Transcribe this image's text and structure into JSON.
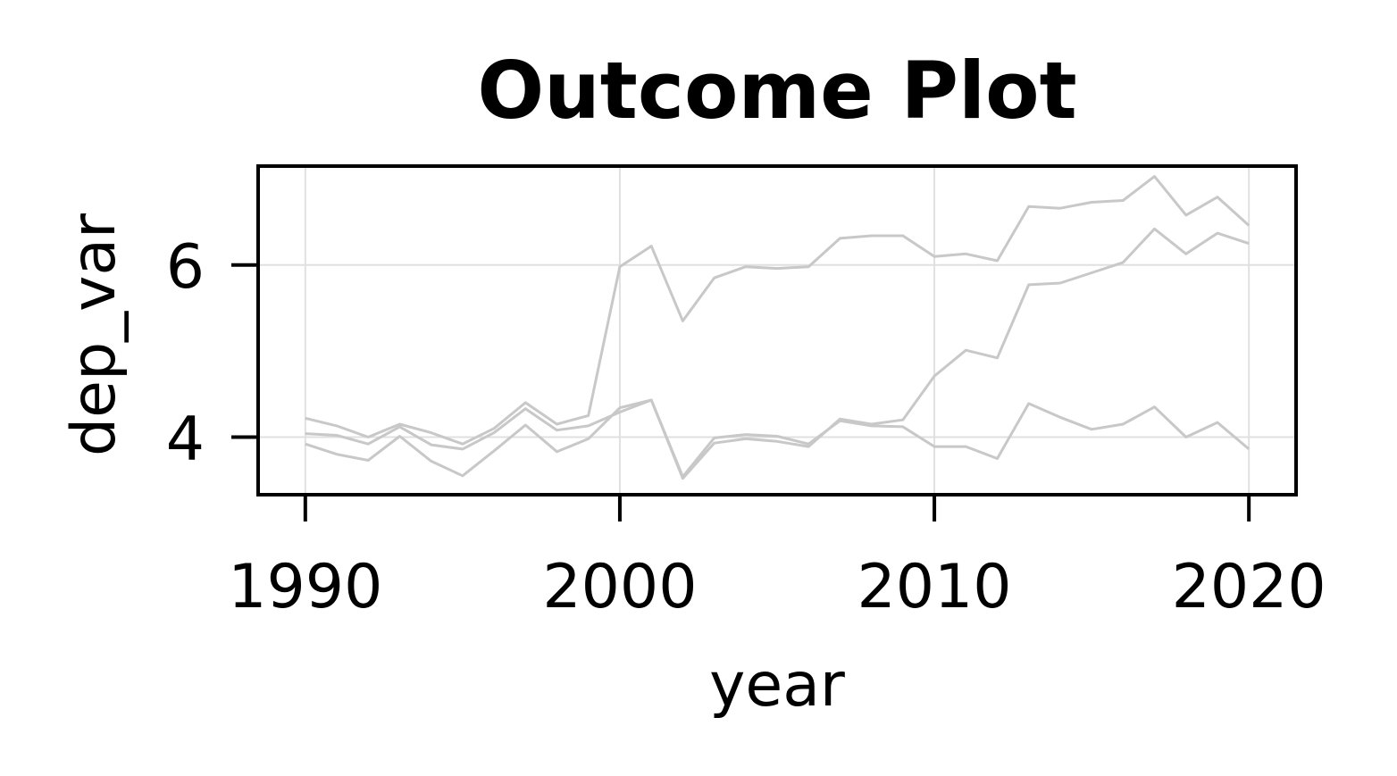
{
  "chart_data": {
    "type": "line",
    "title": "Outcome Plot",
    "xlabel": "year",
    "ylabel": "dep_var",
    "xlim": [
      1988.5,
      2021.5
    ],
    "ylim": [
      3.33,
      7.15
    ],
    "x_ticks": [
      1990,
      2000,
      2010,
      2020
    ],
    "y_ticks": [
      4,
      6
    ],
    "grid": true,
    "line_color": "#c8c8c8",
    "grid_color": "#e0e0e0",
    "x": [
      1990,
      1991,
      1992,
      1993,
      1994,
      1995,
      1996,
      1997,
      1998,
      1999,
      2000,
      2001,
      2002,
      2003,
      2004,
      2005,
      2006,
      2007,
      2008,
      2009,
      2010,
      2011,
      2012,
      2013,
      2014,
      2015,
      2016,
      2017,
      2018,
      2019,
      2020
    ],
    "series": [
      {
        "values": [
          4.22,
          4.13,
          4.0,
          4.15,
          4.05,
          3.92,
          4.1,
          4.4,
          4.15,
          4.25,
          5.98,
          6.22,
          5.35,
          5.85,
          5.98,
          5.96,
          5.98,
          6.31,
          6.34,
          6.34,
          6.1,
          6.13,
          6.05,
          6.68,
          6.66,
          6.73,
          6.75,
          7.03,
          6.58,
          6.79,
          6.46
        ]
      },
      {
        "values": [
          4.04,
          4.02,
          3.92,
          4.12,
          3.91,
          3.86,
          4.05,
          4.33,
          4.08,
          4.13,
          4.29,
          4.43,
          3.52,
          3.93,
          3.98,
          3.95,
          3.89,
          4.21,
          4.15,
          4.2,
          4.71,
          5.01,
          4.92,
          5.77,
          5.79,
          5.91,
          6.03,
          6.42,
          6.13,
          6.37,
          6.25
        ]
      },
      {
        "values": [
          3.92,
          3.8,
          3.73,
          4.01,
          3.72,
          3.55,
          3.84,
          4.14,
          3.83,
          3.98,
          4.34,
          4.43,
          3.54,
          3.99,
          4.03,
          4.01,
          3.92,
          4.19,
          4.13,
          4.12,
          3.89,
          3.89,
          3.75,
          4.39,
          4.23,
          4.09,
          4.15,
          4.35,
          4.0,
          4.17,
          3.86
        ]
      }
    ]
  }
}
